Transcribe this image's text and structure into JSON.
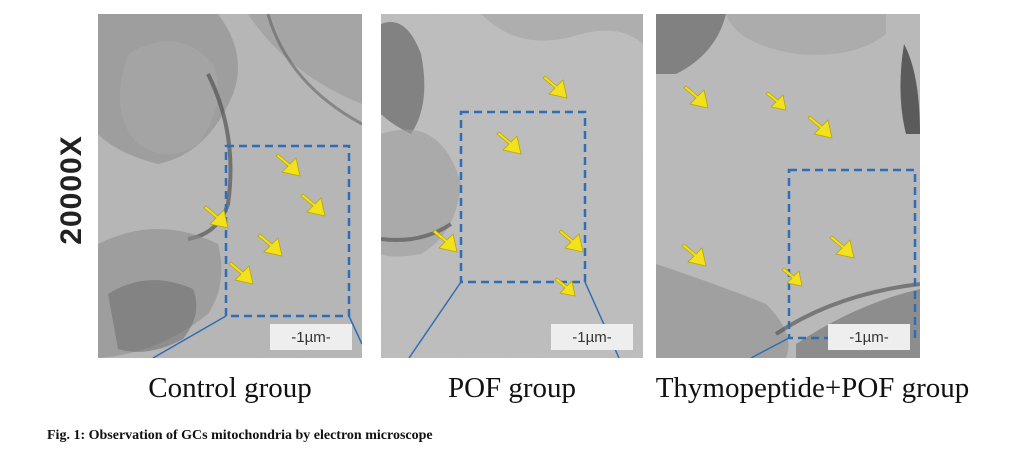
{
  "magnification_label": "20000X",
  "panels": [
    {
      "caption": "Control group",
      "scale_label": "-1µm-"
    },
    {
      "caption": "POF group",
      "scale_label": "-1µm-"
    },
    {
      "caption": "Thymopeptide+POF group",
      "scale_label": "-1µm-"
    }
  ],
  "figure_caption": "Fig. 1: Observation of GCs mitochondria by electron microscope",
  "colors": {
    "arrow": "#f2e11c",
    "roi_box": "#2f6db5",
    "background": "#ffffff"
  },
  "icons": [
    "yellow-arrow-icon",
    "roi-dashed-box"
  ]
}
